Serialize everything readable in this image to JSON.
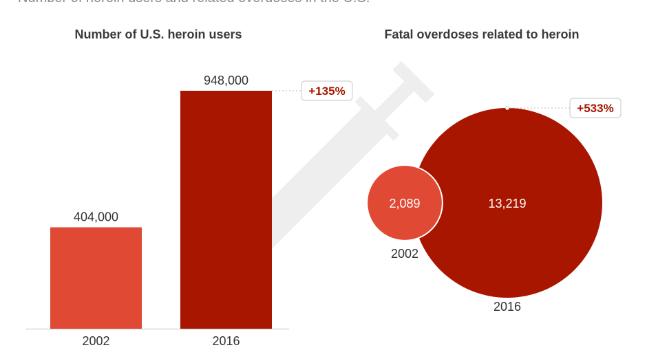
{
  "header": {
    "subtitle": "Number of heroin users and related overdoses in the U.S."
  },
  "colors": {
    "bar_2002": "#e04a34",
    "bar_2016": "#a81600",
    "circle_2002": "#e04a34",
    "circle_2016": "#a81600",
    "badge_text": "#a81600",
    "syringe": "#eeeeee"
  },
  "icons": [
    "syringe-icon"
  ],
  "chart_data": [
    {
      "type": "bar",
      "title": "Number of U.S. heroin users",
      "categories": [
        "2002",
        "2016"
      ],
      "values": [
        404000,
        948000
      ],
      "value_labels": [
        "404,000",
        "948,000"
      ],
      "change_label": "+135%",
      "ylim": [
        0,
        1000000
      ],
      "grid": false
    },
    {
      "type": "bubble",
      "title": "Fatal overdoses related to heroin",
      "categories": [
        "2002",
        "2016"
      ],
      "values": [
        2089,
        13219
      ],
      "value_labels": [
        "2,089",
        "13,219"
      ],
      "change_label": "+533%",
      "grid": false
    }
  ]
}
